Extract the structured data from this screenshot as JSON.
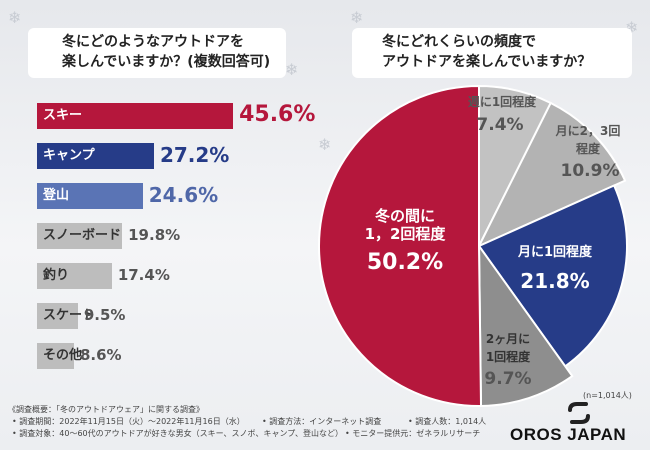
{
  "left_chart": {
    "title_line1": "冬にどのようなアウトドアを",
    "title_line2": "楽しんでいますか？(複数回答可)"
  },
  "right_chart": {
    "title_line1": "冬にどれくらいの頻度で",
    "title_line2": "アウトドアを楽しんでいますか？",
    "sample_size": "(n=1,014人)"
  },
  "chart_data": [
    {
      "type": "bar",
      "orientation": "horizontal",
      "title": "冬にどのようなアウトドアを楽しんでいますか？(複数回答可)",
      "categories": [
        "スキー",
        "キャンプ",
        "登山",
        "スノーボード",
        "釣り",
        "スケート",
        "その他"
      ],
      "values": [
        45.6,
        27.2,
        24.6,
        19.8,
        17.4,
        9.5,
        8.6
      ],
      "value_labels": [
        "45.6%",
        "27.2%",
        "24.6%",
        "19.8%",
        "17.4%",
        "9.5%",
        "8.6%"
      ],
      "colors": [
        "#b5173c",
        "#263c88",
        "#5a74b5",
        "#bdbdbd",
        "#bdbdbd",
        "#bdbdbd",
        "#bdbdbd"
      ],
      "label_colors": [
        "#ffffff",
        "#ffffff",
        "#ffffff",
        "#333333",
        "#333333",
        "#333333",
        "#333333"
      ],
      "value_colors": [
        "#b5173c",
        "#263c88",
        "#4f67a8",
        "#555555",
        "#555555",
        "#555555",
        "#555555"
      ],
      "xlim": [
        0,
        50
      ]
    },
    {
      "type": "pie",
      "title": "冬にどれくらいの頻度でアウトドアを楽しんでいますか？",
      "slices": [
        {
          "label": "週に1回程度",
          "value": 7.4,
          "value_label": "7.4%",
          "color": "#c2c2c2"
        },
        {
          "label": "月に2，3回程度",
          "value": 10.9,
          "value_label": "10.9%",
          "color": "#b3b3b3"
        },
        {
          "label": "月に1回程度",
          "value": 21.8,
          "value_label": "21.8%",
          "color": "#263c88"
        },
        {
          "label": "2ヶ月に1回程度",
          "value": 9.7,
          "value_label": "9.7%",
          "color": "#8e8e8e"
        },
        {
          "label": "冬の間に1，2回程度",
          "value": 50.2,
          "value_label": "50.2%",
          "color": "#b5173c"
        }
      ],
      "sample_size": "(n=1,014人)"
    }
  ],
  "survey": {
    "overview": "《調査概要：「冬のアウトドアウェア」に関する調査》",
    "period": "• 調査期間：2022年11月15日（火）～2022年11月16日（水）",
    "method": "• 調査方法：インターネット調査",
    "count": "• 調査人数：1,014人",
    "target": "• 調査対象：40～60代のアウトドアが好きな男女（スキー、スノボ、キャンプ、登山など）",
    "provider": "• モニター提供元：ゼネラルリサーチ"
  },
  "brand": {
    "name": "OROS JAPAN"
  },
  "pie_text": {
    "weekly": "週に1回程度",
    "monthly23_l1": "月に2，3回",
    "monthly23_l2": "程度",
    "monthly1": "月に1回程度",
    "bimonthly_l1": "2ヶ月に",
    "bimonthly_l2": "1回程度",
    "winter_l1": "冬の間に",
    "winter_l2": "1，2回程度"
  }
}
